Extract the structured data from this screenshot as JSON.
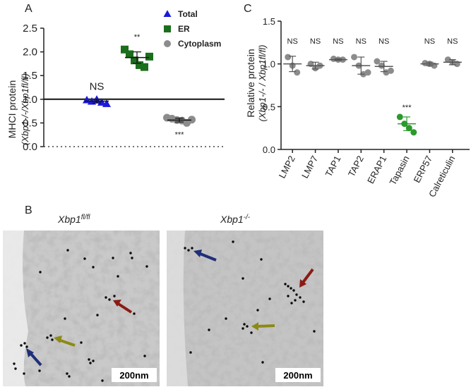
{
  "figure": {
    "panel_labels": [
      "A",
      "B",
      "C"
    ],
    "em_titles": [
      "Xbp1",
      "fl/fl",
      "Xbp1",
      "-/-"
    ],
    "scale_bar_label": "200nm",
    "arrow_colors": {
      "blue": "#1f2f78",
      "red": "#8b1a14",
      "olive": "#8c8a16"
    }
  },
  "chart_data": [
    {
      "type": "scatter",
      "panel": "A",
      "ylabel_main": "MHCI protein",
      "ylabel_sub": "(Xbp1-/-/Xbp1fl/fl)",
      "ylim": [
        0,
        2.5
      ],
      "yticks": [
        "0.0",
        "0.5",
        "1.0",
        "1.5",
        "2.0",
        "2.5"
      ],
      "reference_line": 1.0,
      "legend": [
        {
          "name": "Total",
          "color": "#1a1adb",
          "marker": "triangle"
        },
        {
          "name": "ER",
          "color": "#1b6e1b",
          "marker": "square"
        },
        {
          "name": "Cytoplasm",
          "color": "#8c8c8c",
          "marker": "circle"
        }
      ],
      "series": [
        {
          "name": "Total",
          "values": [
            0.98,
            0.95,
            0.99,
            0.93,
            0.9
          ],
          "mean": 0.96,
          "sd": 0.04,
          "significance": "NS"
        },
        {
          "name": "ER",
          "values": [
            2.05,
            1.95,
            1.82,
            1.72,
            1.68,
            1.9
          ],
          "mean": 1.88,
          "sd": 0.12,
          "significance": "**"
        },
        {
          "name": "Cytoplasm",
          "values": [
            0.61,
            0.59,
            0.56,
            0.55,
            0.5,
            0.57
          ],
          "mean": 0.56,
          "sd": 0.04,
          "significance": "***"
        }
      ]
    },
    {
      "type": "scatter",
      "panel": "C",
      "ylabel_main": "Relative protein",
      "ylabel_sub": "(Xbp1-/- / Xbp1fl/fl)",
      "ylim": [
        0,
        1.5
      ],
      "yticks": [
        "0.0",
        "0.5",
        "1.0",
        "1.5"
      ],
      "categories": [
        "LMP2",
        "LMP7",
        "TAP1",
        "TAP2",
        "ERAP1",
        "Tapasin",
        "ERP57",
        "Calreticulin"
      ],
      "series": [
        {
          "name": "LMP2",
          "values": [
            1.08,
            0.98,
            0.9
          ],
          "mean": 1.0,
          "sd": 0.09,
          "significance": "NS",
          "color": "#8c8c8c"
        },
        {
          "name": "LMP7",
          "values": [
            1.0,
            0.95,
            0.98
          ],
          "mean": 0.98,
          "sd": 0.04,
          "significance": "NS",
          "color": "#8c8c8c"
        },
        {
          "name": "TAP1",
          "values": [
            1.06,
            1.05,
            1.05
          ],
          "mean": 1.05,
          "sd": 0.01,
          "significance": "NS",
          "color": "#8c8c8c"
        },
        {
          "name": "TAP2",
          "values": [
            1.08,
            0.98,
            0.88,
            0.9
          ],
          "mean": 0.98,
          "sd": 0.1,
          "significance": "NS",
          "color": "#8c8c8c"
        },
        {
          "name": "ERAP1",
          "values": [
            1.03,
            0.98,
            0.9,
            0.92
          ],
          "mean": 0.97,
          "sd": 0.06,
          "significance": "NS",
          "color": "#8c8c8c"
        },
        {
          "name": "Tapasin",
          "values": [
            0.38,
            0.3,
            0.25,
            0.2
          ],
          "mean": 0.3,
          "sd": 0.08,
          "significance": "***",
          "color": "#2b9a2b"
        },
        {
          "name": "ERP57",
          "values": [
            1.01,
            1.0,
            0.98
          ],
          "mean": 1.0,
          "sd": 0.02,
          "significance": "NS",
          "color": "#8c8c8c"
        },
        {
          "name": "Calreticulin",
          "values": [
            1.05,
            1.02,
            1.0
          ],
          "mean": 1.02,
          "sd": 0.03,
          "significance": "NS",
          "color": "#8c8c8c"
        }
      ]
    }
  ]
}
